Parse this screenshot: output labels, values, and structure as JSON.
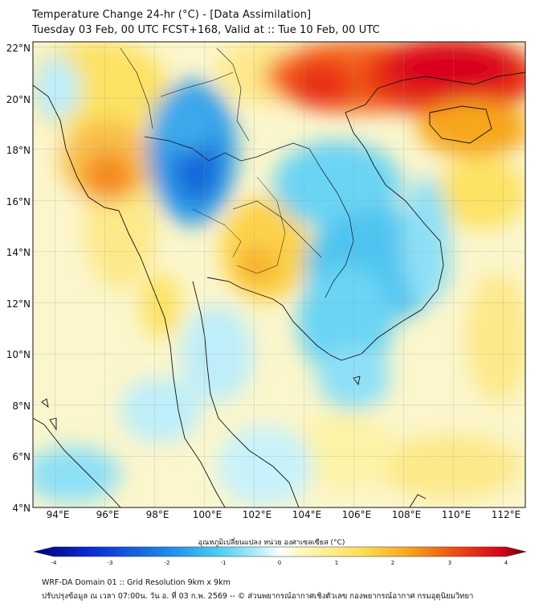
{
  "header": {
    "title_line1": "Temperature Change 24-hr (°C) - [Data Assimilation]",
    "title_line2": "Tuesday 03 Feb, 00 UTC FCST+168, Valid at :: Tue 10 Feb, 00 UTC"
  },
  "map": {
    "lat_labels": [
      "22°N",
      "20°N",
      "18°N",
      "16°N",
      "14°N",
      "12°N",
      "10°N",
      "8°N",
      "6°N",
      "4°N"
    ],
    "lon_labels": [
      "94°E",
      "96°E",
      "98°E",
      "100°E",
      "102°E",
      "104°E",
      "106°E",
      "108°E",
      "110°E",
      "112°E"
    ],
    "lat_range": [
      4,
      22.2
    ],
    "lon_range": [
      93.1,
      112.9
    ],
    "grid": true
  },
  "colorbar": {
    "label": "อุณหภูมิเปลี่ยนแปลง หน่วย องศาเซลเซียส (°C)",
    "ticks": [
      "-4",
      "-3",
      "-2",
      "-1",
      "0",
      "1",
      "2",
      "3",
      "4"
    ],
    "min": -4,
    "max": 4,
    "colors": [
      "#00007a",
      "#0a2ed6",
      "#1f8fe8",
      "#4fd0f2",
      "#c8f2fb",
      "#ffffff",
      "#fdf7b8",
      "#fde05a",
      "#f7a71e",
      "#ee4a12",
      "#d8001a",
      "#6a0000"
    ]
  },
  "footer": {
    "line1": "WRF-DA Domain 01 :: Grid Resolution 9km x 9km",
    "line2": "ปรับปรุงข้อมูล ณ เวลา 07:00น. วัน อ. ที่ 03 ก.พ. 2569 -- © ส่วนพยากรณ์อากาศเชิงตัวเลข กองพยากรณ์อากาศ กรมอุตุนิยมวิทยา"
  }
}
